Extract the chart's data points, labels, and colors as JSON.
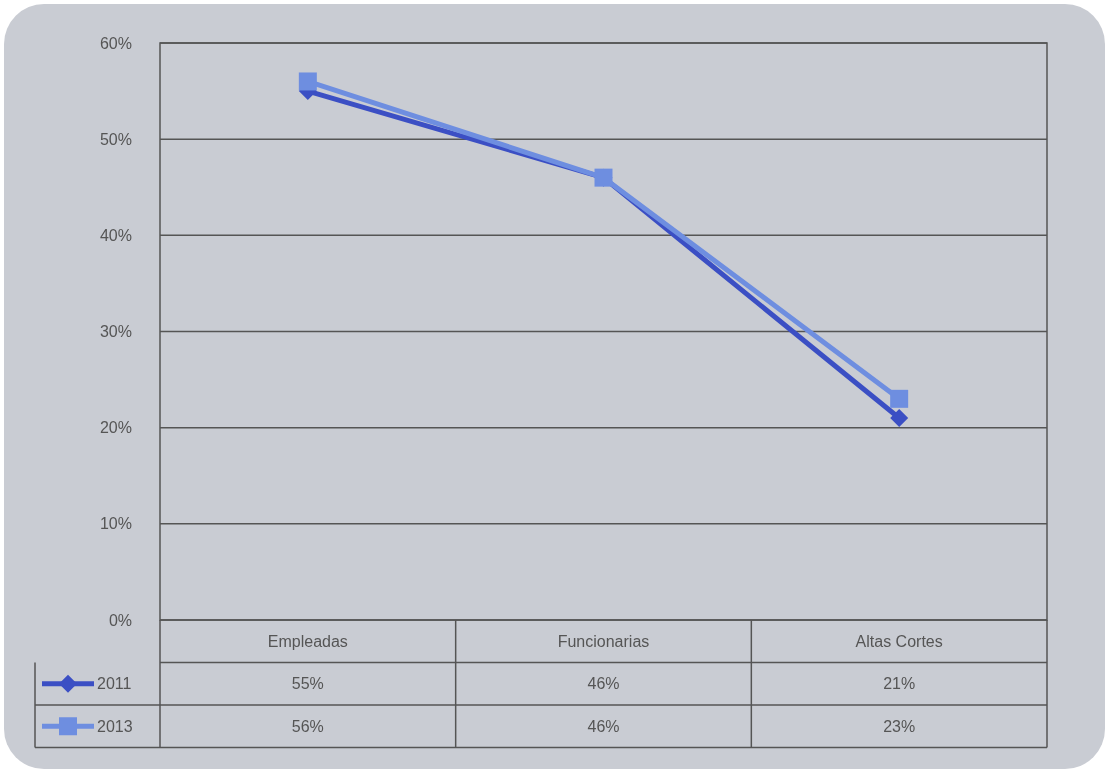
{
  "chart_data": {
    "type": "line",
    "categories": [
      "Empleadas",
      "Funcionarias",
      "Altas Cortes"
    ],
    "series": [
      {
        "name": "2011",
        "color": "#3b4fc4",
        "values": [
          55,
          46,
          21
        ],
        "marker": "diamond",
        "value_labels": [
          "55%",
          "46%",
          "21%"
        ]
      },
      {
        "name": "2013",
        "color": "#6e8ee0",
        "values": [
          56,
          46,
          23
        ],
        "marker": "square",
        "value_labels": [
          "56%",
          "46%",
          "23%"
        ]
      }
    ],
    "ylim": [
      0,
      60
    ],
    "yticks": [
      {
        "value": 0,
        "label": "0%"
      },
      {
        "value": 10,
        "label": "10%"
      },
      {
        "value": 20,
        "label": "20%"
      },
      {
        "value": 30,
        "label": "30%"
      },
      {
        "value": 40,
        "label": "40%"
      },
      {
        "value": 50,
        "label": "50%"
      },
      {
        "value": 60,
        "label": "60%"
      }
    ],
    "grid": "y",
    "legend": "bottom left",
    "line_style": "solid"
  }
}
